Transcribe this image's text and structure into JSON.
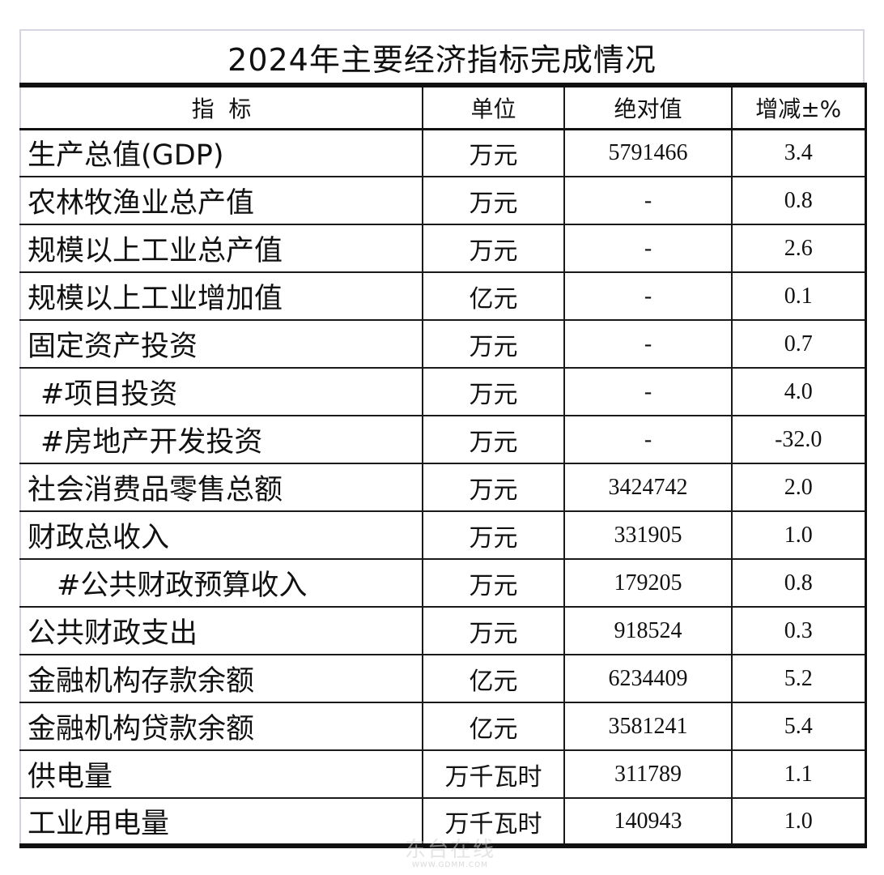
{
  "title": "2024年主要经济指标完成情况",
  "headers": {
    "indicator": "指  标",
    "unit": "单位",
    "absolute": "绝对值",
    "change": "增减±%"
  },
  "rows": [
    {
      "name": "生产总值(GDP)",
      "unit": "万元",
      "value": "5791466",
      "change": "3.4",
      "indent": 0
    },
    {
      "name": "农林牧渔业总产值",
      "unit": "万元",
      "value": "-",
      "change": "0.8",
      "indent": 0
    },
    {
      "name": "规模以上工业总产值",
      "unit": "万元",
      "value": "-",
      "change": "2.6",
      "indent": 0
    },
    {
      "name": "规模以上工业增加值",
      "unit": "亿元",
      "value": "-",
      "change": "0.1",
      "indent": 0
    },
    {
      "name": "固定资产投资",
      "unit": "万元",
      "value": "-",
      "change": "0.7",
      "indent": 0
    },
    {
      "name": "#项目投资",
      "unit": "万元",
      "value": "-",
      "change": "4.0",
      "indent": 1
    },
    {
      "name": "#房地产开发投资",
      "unit": "万元",
      "value": "-",
      "change": "-32.0",
      "indent": 1
    },
    {
      "name": "社会消费品零售总额",
      "unit": "万元",
      "value": "3424742",
      "change": "2.0",
      "indent": 0
    },
    {
      "name": "财政总收入",
      "unit": "万元",
      "value": "331905",
      "change": "1.0",
      "indent": 0
    },
    {
      "name": "#公共财政预算收入",
      "unit": "万元",
      "value": "179205",
      "change": "0.8",
      "indent": 2
    },
    {
      "name": "公共财政支出",
      "unit": "万元",
      "value": "918524",
      "change": "0.3",
      "indent": 0
    },
    {
      "name": "金融机构存款余额",
      "unit": "亿元",
      "value": "6234409",
      "change": "5.2",
      "indent": 0
    },
    {
      "name": "金融机构贷款余额",
      "unit": "亿元",
      "value": "3581241",
      "change": "5.4",
      "indent": 0
    },
    {
      "name": "供电量",
      "unit": "万千瓦时",
      "value": "311789",
      "change": "1.1",
      "indent": 0
    },
    {
      "name": "工业用电量",
      "unit": "万千瓦时",
      "value": "140943",
      "change": "1.0",
      "indent": 0
    }
  ],
  "watermark": {
    "logo": "东台在线",
    "url": "WWW.GDMM.COM"
  }
}
